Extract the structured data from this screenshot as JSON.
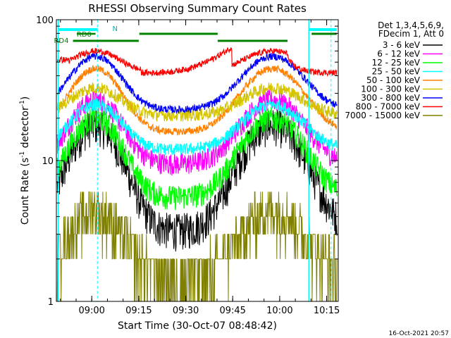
{
  "chart_data": {
    "type": "line",
    "title": "RHESSI Observing Summary Count Rates",
    "xlabel": "Start Time (30-Oct-07 08:48:42)",
    "ylabel_main": "Count Rate (s",
    "ylabel_sup": "-1",
    "ylabel_tail": " detector",
    "ylabel_end": ")",
    "x_minutes": [
      0,
      90
    ],
    "y_log_range": [
      1,
      100
    ],
    "x_ticks": [
      {
        "minute": 11.3,
        "label": "09:00"
      },
      {
        "minute": 26.3,
        "label": "09:15"
      },
      {
        "minute": 41.3,
        "label": "09:30"
      },
      {
        "minute": 56.3,
        "label": "09:45"
      },
      {
        "minute": 71.3,
        "label": "10:00"
      },
      {
        "minute": 86.3,
        "label": "10:15"
      }
    ],
    "y_ticks": [
      {
        "value": 1,
        "label": "1"
      },
      {
        "value": 10,
        "label": "10"
      },
      {
        "value": 100,
        "label": "100"
      }
    ],
    "header": {
      "line1": "Det 1,3,4,5,6,9,",
      "line2": "FDecim 1, Att 0"
    },
    "series": [
      {
        "name": "3 - 6 keV",
        "color": "#000000"
      },
      {
        "name": "6 - 12 keV",
        "color": "#ff00ff"
      },
      {
        "name": "12 - 25 keV",
        "color": "#00ff00"
      },
      {
        "name": "25 - 50 keV",
        "color": "#00ffff"
      },
      {
        "name": "50 - 100 keV",
        "color": "#ff7f00"
      },
      {
        "name": "100 - 300 keV",
        "color": "#d4c400"
      },
      {
        "name": "300 - 800 keV",
        "color": "#0000ff"
      },
      {
        "name": "800 - 7000 keV",
        "color": "#ff0000"
      },
      {
        "name": "7000 - 15000 keV",
        "color": "#808000"
      }
    ],
    "annotations": {
      "night_label": "N",
      "rd0_label": "RD0",
      "rd4_label": "RD4"
    },
    "footer_date": "16-Oct-2021 20:57"
  }
}
